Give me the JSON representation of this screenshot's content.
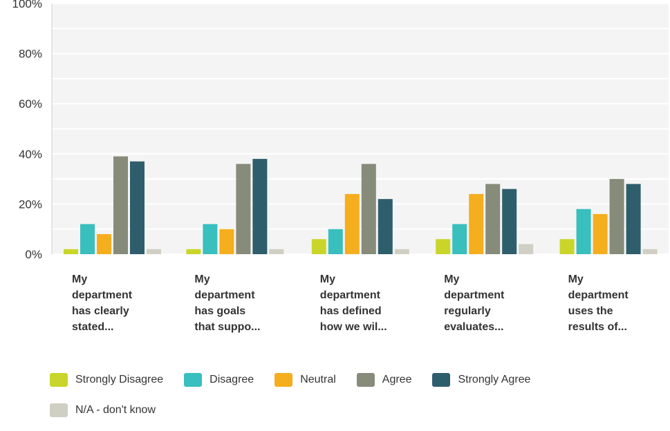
{
  "chart_data": {
    "type": "bar",
    "categories": [
      [
        "My",
        "department",
        "has clearly",
        "stated..."
      ],
      [
        "My",
        "department",
        "has goals",
        "that suppo..."
      ],
      [
        "My",
        "department",
        "has defined",
        "how we wil..."
      ],
      [
        "My",
        "department",
        "regularly",
        "evaluates..."
      ],
      [
        "My",
        "department",
        "uses the",
        "results of..."
      ]
    ],
    "series": [
      {
        "name": "Strongly Disagree",
        "color": "#cad52a",
        "values": [
          2,
          2,
          6,
          6,
          6
        ]
      },
      {
        "name": "Disagree",
        "color": "#38bfbe",
        "values": [
          12,
          12,
          10,
          12,
          18
        ]
      },
      {
        "name": "Neutral",
        "color": "#f5ae1e",
        "values": [
          8,
          10,
          24,
          24,
          16
        ]
      },
      {
        "name": "Agree",
        "color": "#878b7a",
        "values": [
          39,
          36,
          36,
          28,
          30
        ]
      },
      {
        "name": "Strongly Agree",
        "color": "#2e5e6c",
        "values": [
          37,
          38,
          22,
          26,
          28
        ]
      },
      {
        "name": "N/A - don't know",
        "color": "#d0cfc3",
        "values": [
          2,
          2,
          2,
          4,
          2
        ]
      }
    ],
    "ylim": [
      0,
      100
    ],
    "yticks": [
      "0%",
      "20%",
      "40%",
      "60%",
      "80%",
      "100%"
    ],
    "grid": true,
    "legend_position": "bottom",
    "xlabel": "",
    "ylabel": ""
  }
}
